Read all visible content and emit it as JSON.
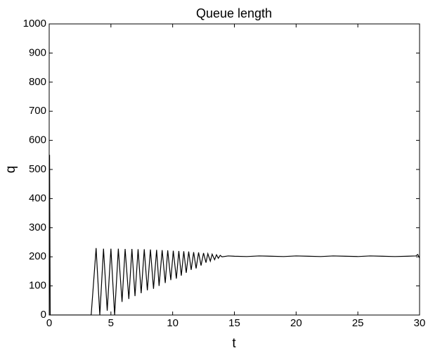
{
  "chart_data": {
    "type": "line",
    "title": "Queue length",
    "xlabel": "t",
    "ylabel": "q",
    "x": [
      0,
      0.03,
      0.08,
      3.4,
      3.8,
      4.1,
      4.4,
      4.7,
      5.0,
      5.3,
      5.6,
      5.9,
      6.15,
      6.45,
      6.7,
      6.95,
      7.2,
      7.45,
      7.7,
      7.95,
      8.2,
      8.45,
      8.7,
      8.9,
      9.15,
      9.4,
      9.6,
      9.85,
      10.05,
      10.3,
      10.5,
      10.7,
      10.9,
      11.1,
      11.3,
      11.5,
      11.7,
      11.9,
      12.1,
      12.3,
      12.5,
      12.7,
      12.85,
      13.05,
      13.2,
      13.4,
      13.55,
      13.7,
      13.85,
      14.0,
      14.5,
      15,
      16,
      17,
      18,
      19,
      20,
      21,
      22,
      23,
      24,
      25,
      26,
      27,
      28,
      29,
      29.7,
      29.85,
      30
    ],
    "values": [
      0,
      550,
      0,
      0,
      230,
      0,
      228,
      15,
      228,
      0,
      228,
      45,
      227,
      55,
      227,
      65,
      226,
      75,
      226,
      85,
      225,
      90,
      224,
      100,
      223,
      110,
      222,
      120,
      221,
      125,
      220,
      135,
      219,
      145,
      218,
      155,
      216,
      160,
      215,
      170,
      213,
      180,
      211,
      185,
      209,
      190,
      207,
      195,
      205,
      200,
      203,
      202,
      201,
      203,
      202,
      201,
      203,
      202,
      201,
      203,
      202,
      201,
      203,
      202,
      201,
      202,
      203,
      208,
      196
    ],
    "color": "#000000",
    "xlim": [
      0,
      30
    ],
    "xticks": [
      0,
      5,
      10,
      15,
      20,
      25,
      30
    ],
    "ylim": [
      0,
      1000
    ],
    "yticks": [
      0,
      100,
      200,
      300,
      400,
      500,
      600,
      700,
      800,
      900,
      1000
    ],
    "grid": false
  }
}
